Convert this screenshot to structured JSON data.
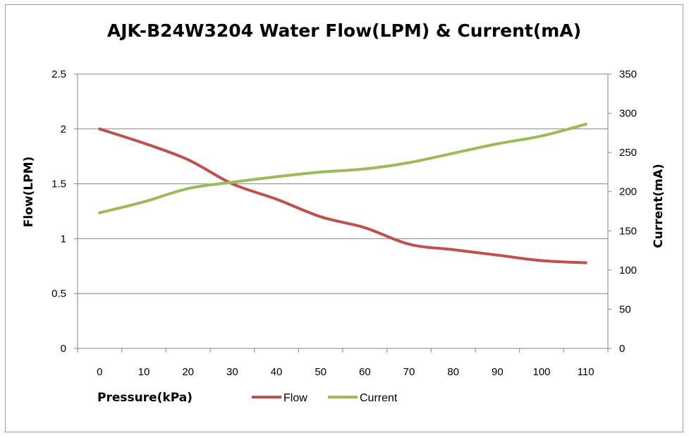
{
  "chart_data": {
    "type": "line",
    "title": "AJK-B24W3204 Water Flow(LPM) & Current(mA)",
    "xlabel": "Pressure(kPa)",
    "ylabel": "Flow(LPM)",
    "y2label": "Current(mA)",
    "categories": [
      "0",
      "10",
      "20",
      "30",
      "40",
      "50",
      "60",
      "70",
      "80",
      "90",
      "100",
      "110"
    ],
    "x": [
      0,
      10,
      20,
      30,
      40,
      50,
      60,
      70,
      80,
      90,
      100,
      110
    ],
    "ylim": [
      0,
      2.5
    ],
    "y2lim": [
      0,
      350
    ],
    "yticks": [
      "0",
      "0.5",
      "1",
      "1.5",
      "2",
      "2.5"
    ],
    "y2ticks": [
      "0",
      "50",
      "100",
      "150",
      "200",
      "250",
      "300",
      "350"
    ],
    "grid": true,
    "legend_position": "bottom",
    "series": [
      {
        "name": "Flow",
        "axis": "left",
        "color": "#c0504d",
        "values": [
          2.0,
          1.87,
          1.72,
          1.5,
          1.36,
          1.2,
          1.1,
          0.95,
          0.9,
          0.85,
          0.8,
          0.78
        ]
      },
      {
        "name": "Current",
        "axis": "right",
        "color": "#9bbb59",
        "values": [
          173,
          187,
          204,
          212,
          219,
          225,
          229,
          237,
          249,
          261,
          271,
          286
        ]
      }
    ]
  }
}
